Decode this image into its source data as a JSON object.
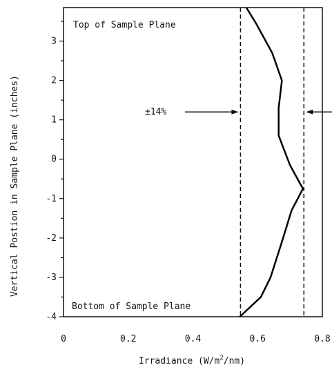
{
  "chart_data": {
    "type": "line",
    "title": "",
    "xlabel": "Irradiance (W/m",
    "xlabel_sup": "2",
    "xlabel_suffix": "/nm)",
    "ylabel": "Vertical Postion in Sample Plane (inches)",
    "xlim": [
      0,
      0.8
    ],
    "ylim": [
      -4,
      3.85
    ],
    "grid": false,
    "x_ticks": [
      0,
      0.2,
      0.4,
      0.6,
      0.8
    ],
    "x_tick_labels": [
      "0",
      "0.2",
      "0.4",
      "0.6",
      "0.8"
    ],
    "y_ticks": [
      -4,
      -3,
      -2,
      -1,
      0,
      1,
      2,
      3
    ],
    "y_tick_labels": [
      "-4",
      "-3",
      "-2",
      "-1",
      "0",
      "1",
      "2",
      "3"
    ],
    "y_minor_ticks": [
      -3.5,
      -2.5,
      -1.5,
      -0.5,
      0.5,
      1.5,
      2.5,
      3.5
    ],
    "series": [
      {
        "x": [
          0.545,
          0.61,
          0.64,
          0.675,
          0.705,
          0.74,
          0.7,
          0.665,
          0.665,
          0.675,
          0.645,
          0.595,
          0.565
        ],
        "y": [
          -4,
          -3.5,
          -3.0,
          -2.1,
          -1.3,
          -0.75,
          -0.15,
          0.6,
          1.3,
          2.0,
          2.7,
          3.45,
          3.85
        ]
      }
    ],
    "reference_lines": [
      {
        "x": 0.547,
        "style": "dashed"
      },
      {
        "x": 0.743,
        "style": "dashed"
      }
    ],
    "annotations": {
      "top_label": "Top of Sample Plane",
      "bottom_label": "Bottom of Sample Plane",
      "percent_label": "±14%",
      "arrow_y": 1.2
    }
  }
}
